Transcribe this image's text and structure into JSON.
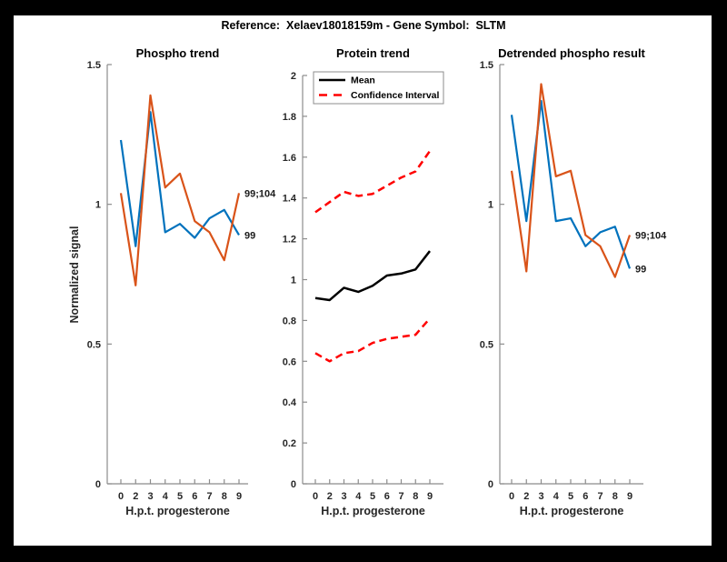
{
  "figure": {
    "title": "Reference:  Xelaev18018159m - Gene Symbol:  SLTM",
    "ylabel": "Normalized signal",
    "xlabel": "H.p.t. progesterone",
    "background": "#000000",
    "panel": "#ffffff"
  },
  "colors": {
    "blue": "#0072BD",
    "orange": "#D95319",
    "red": "#FF0000",
    "black": "#000000",
    "axis_text": "#262626",
    "spine": "#8c8c8c"
  },
  "chart_data": [
    {
      "id": "phospho-trend",
      "type": "line",
      "title": "Phospho trend",
      "xlabel": "H.p.t. progesterone",
      "ylabel": "Normalized signal",
      "x_ticklabels": [
        "0",
        "2",
        "3",
        "4",
        "5",
        "6",
        "7",
        "8",
        "9"
      ],
      "y_ticks": [
        "0",
        "0.5",
        "1",
        "1.5"
      ],
      "ylim": [
        0,
        1.5
      ],
      "grid": false,
      "series": [
        {
          "name": "99",
          "color": "#0072BD",
          "style": "solid",
          "width": 2.2,
          "values": [
            1.23,
            0.85,
            1.33,
            0.9,
            0.93,
            0.88,
            0.95,
            0.98,
            0.89
          ],
          "end_label": "99"
        },
        {
          "name": "99;104",
          "color": "#D95319",
          "style": "solid",
          "width": 2.2,
          "values": [
            1.04,
            0.71,
            1.39,
            1.06,
            1.11,
            0.94,
            0.9,
            0.8,
            1.04
          ],
          "end_label": "99;104"
        }
      ]
    },
    {
      "id": "protein-trend",
      "type": "line",
      "title": "Protein trend",
      "xlabel": "H.p.t. progesterone",
      "x_ticklabels": [
        "0",
        "2",
        "3",
        "4",
        "5",
        "6",
        "7",
        "8",
        "9"
      ],
      "y_ticks": [
        "0",
        "0.2",
        "0.4",
        "0.6",
        "0.8",
        "1",
        "1.2",
        "1.4",
        "1.6",
        "1.8",
        "2"
      ],
      "ylim": [
        0,
        2
      ],
      "grid": false,
      "legend": {
        "position": "northwest",
        "items": [
          {
            "label": "Mean",
            "color": "#000000",
            "style": "solid"
          },
          {
            "label": "Confidence Interval",
            "color": "#FF0000",
            "style": "dashed"
          }
        ]
      },
      "series": [
        {
          "name": "Mean",
          "color": "#000000",
          "style": "solid",
          "width": 2.5,
          "values": [
            0.91,
            0.9,
            0.96,
            0.94,
            0.97,
            1.02,
            1.03,
            1.05,
            1.14
          ]
        },
        {
          "name": "Confidence Interval upper",
          "color": "#FF0000",
          "style": "dashed",
          "width": 2.5,
          "values": [
            1.33,
            1.38,
            1.43,
            1.41,
            1.42,
            1.46,
            1.5,
            1.53,
            1.63
          ]
        },
        {
          "name": "Confidence Interval lower",
          "color": "#FF0000",
          "style": "dashed",
          "width": 2.5,
          "values": [
            0.64,
            0.6,
            0.64,
            0.65,
            0.69,
            0.71,
            0.72,
            0.73,
            0.81
          ]
        }
      ]
    },
    {
      "id": "detrended-phospho-result",
      "type": "line",
      "title": "Detrended phospho result",
      "xlabel": "H.p.t. progesterone",
      "x_ticklabels": [
        "0",
        "2",
        "3",
        "4",
        "5",
        "6",
        "7",
        "8",
        "9"
      ],
      "y_ticks": [
        "0",
        "0.5",
        "1",
        "1.5"
      ],
      "ylim": [
        0,
        1.5
      ],
      "grid": false,
      "series": [
        {
          "name": "99",
          "color": "#0072BD",
          "style": "solid",
          "width": 2.2,
          "values": [
            1.32,
            0.94,
            1.37,
            0.94,
            0.95,
            0.85,
            0.9,
            0.92,
            0.77
          ],
          "end_label": "99"
        },
        {
          "name": "99;104",
          "color": "#D95319",
          "style": "solid",
          "width": 2.2,
          "values": [
            1.12,
            0.76,
            1.43,
            1.1,
            1.12,
            0.89,
            0.85,
            0.74,
            0.89
          ],
          "end_label": "99;104"
        }
      ]
    }
  ]
}
